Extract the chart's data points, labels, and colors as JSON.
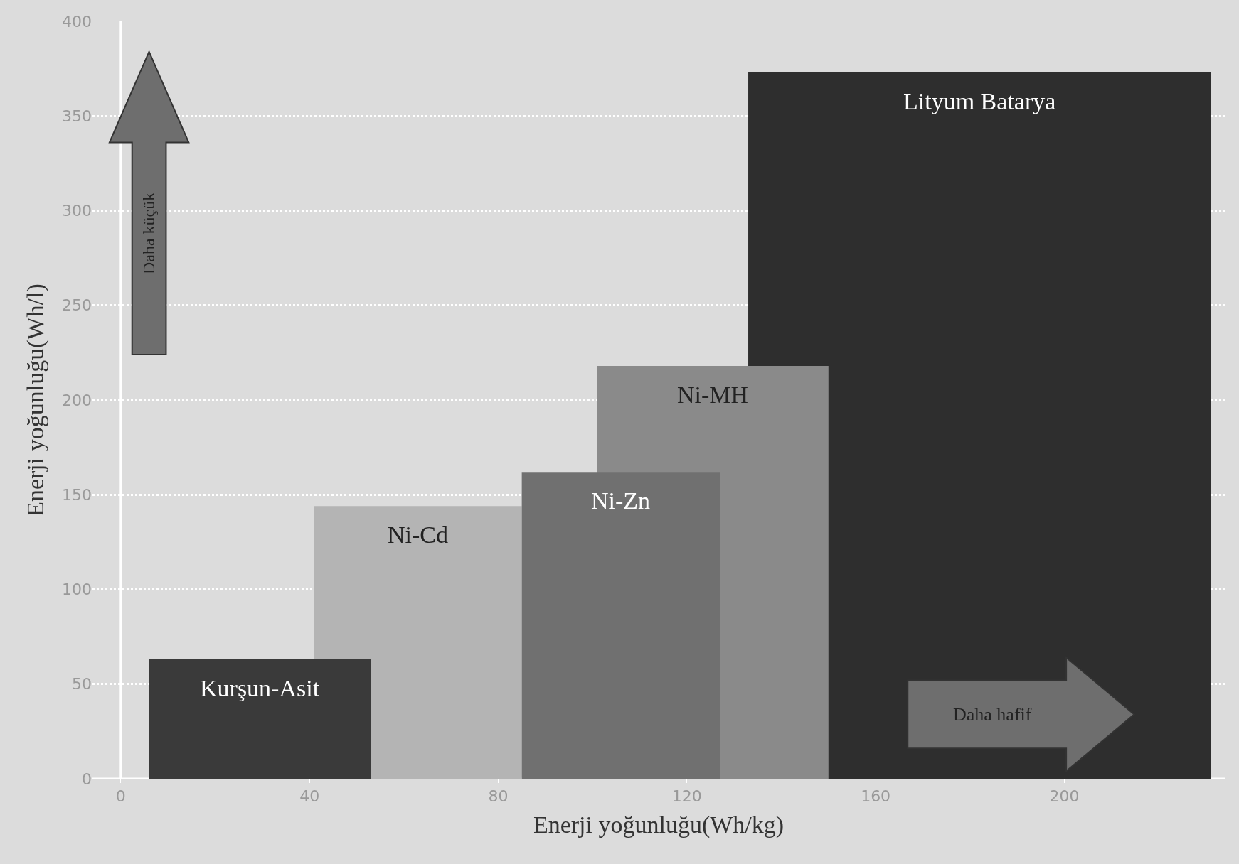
{
  "chart_data": {
    "type": "area",
    "xlabel": "Enerji yoğunluğu(Wh/kg)",
    "ylabel": "Enerji yoğunluğu(Wh/l)",
    "series": [
      {
        "name": "Lityum Batarya",
        "color": "#2e2e2e",
        "x": [
          133,
          231
        ],
        "values": [
          373,
          373
        ]
      },
      {
        "name": "Ni-MH",
        "color": "#8a8a8a",
        "x": [
          101,
          150
        ],
        "values": [
          218,
          218
        ]
      },
      {
        "name": "Ni-Cd",
        "color": "#b4b4b4",
        "x": [
          41,
          85
        ],
        "values": [
          144,
          144
        ]
      },
      {
        "name": "Ni-Zn",
        "color": "#707070",
        "x": [
          85,
          127
        ],
        "values": [
          162,
          162
        ]
      },
      {
        "name": "Kurşun-Asit",
        "color": "#3a3a3a",
        "x": [
          6,
          53
        ],
        "values": [
          63,
          63
        ]
      }
    ],
    "annotations": [
      "Daha küçük",
      "Daha hafif"
    ],
    "xlim": [
      -6,
      234
    ],
    "xticks": [
      0,
      40,
      80,
      120,
      160,
      200
    ],
    "ylim": [
      0,
      400
    ],
    "yticks": [
      0,
      50,
      100,
      150,
      200,
      250,
      300,
      350,
      400
    ],
    "grid": "y",
    "legend": false
  }
}
